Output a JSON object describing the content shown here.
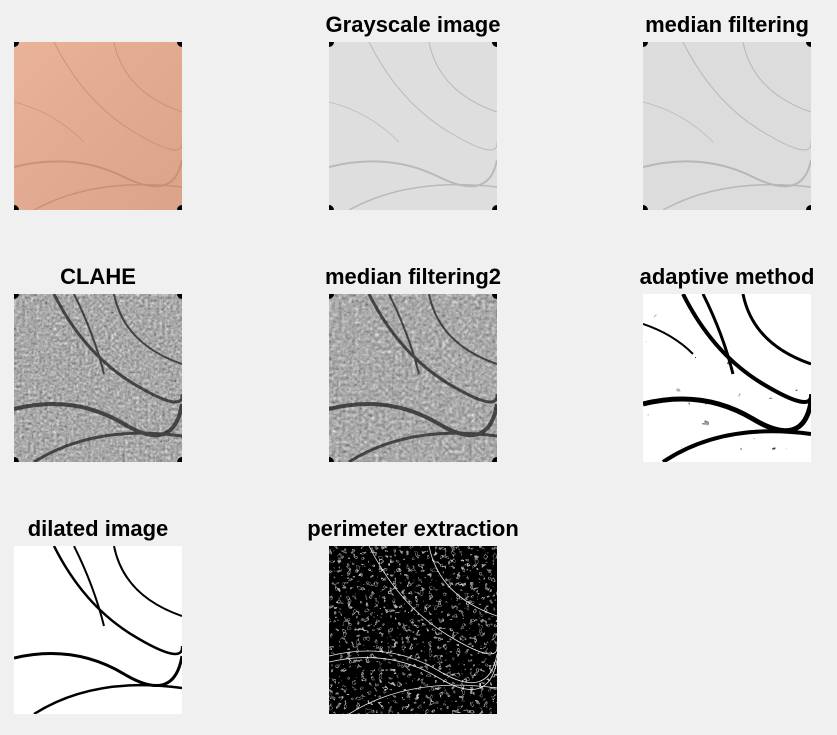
{
  "figure": {
    "panels": [
      {
        "id": "original",
        "title": ""
      },
      {
        "id": "grayscale",
        "title": "Grayscale image"
      },
      {
        "id": "median",
        "title": "median filtering"
      },
      {
        "id": "clahe",
        "title": "CLAHE"
      },
      {
        "id": "median2",
        "title": "median filtering2"
      },
      {
        "id": "adaptive",
        "title": "adaptive method"
      },
      {
        "id": "dilated",
        "title": "dilated image"
      },
      {
        "id": "perimeter",
        "title": "perimeter extraction"
      }
    ]
  },
  "colors": {
    "background": "#f0f0f0",
    "skin": "#e6ae94",
    "grayscale": "#dedede",
    "clahe": "#8f8f8f",
    "binary_white": "#ffffff",
    "binary_black": "#000000"
  }
}
